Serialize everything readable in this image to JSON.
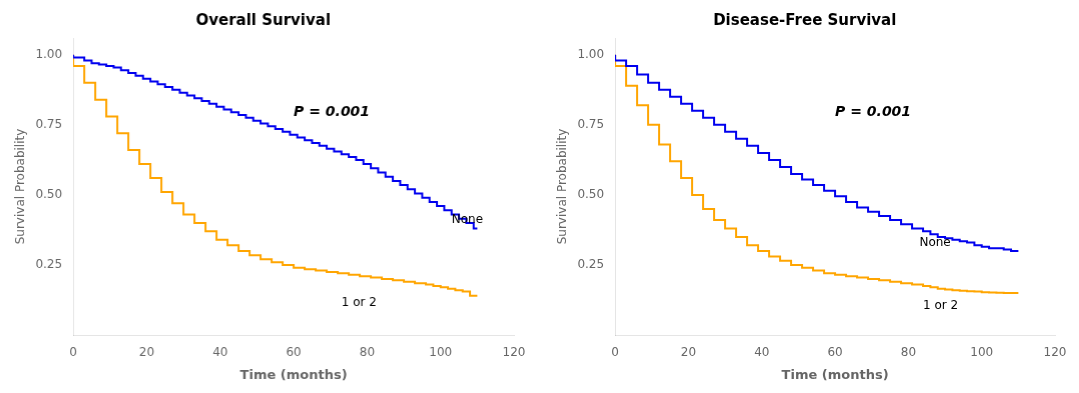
{
  "chart_data": [
    {
      "type": "line",
      "title": "Overall Survival",
      "x_label": "Time (months)",
      "y_label": "Survival Probability",
      "xlim": [
        0,
        120
      ],
      "xticks": [
        0,
        20,
        40,
        60,
        80,
        100,
        120
      ],
      "ylim": [
        0,
        1.06
      ],
      "yticks": [
        0.25,
        {
          "value": 0.5,
          "label": "0.50"
        },
        0.75,
        {
          "value": 1,
          "label": "1.00"
        }
      ],
      "grid": false,
      "series": [
        {
          "color": "#0000EE",
          "line_style": "step",
          "x": [
            0,
            3,
            5,
            7,
            9,
            11,
            13,
            15,
            17,
            19,
            21,
            23,
            25,
            27,
            29,
            31,
            33,
            35,
            37,
            39,
            41,
            43,
            45,
            47,
            49,
            51,
            53,
            55,
            57,
            59,
            61,
            63,
            65,
            67,
            69,
            71,
            73,
            75,
            77,
            79,
            81,
            83,
            85,
            87,
            89,
            91,
            93,
            95,
            97,
            99,
            101,
            103,
            105,
            107,
            109,
            110
          ],
          "values": [
            1.0,
            0.99,
            0.98,
            0.97,
            0.965,
            0.96,
            0.955,
            0.945,
            0.935,
            0.925,
            0.915,
            0.905,
            0.895,
            0.885,
            0.875,
            0.865,
            0.855,
            0.845,
            0.835,
            0.825,
            0.815,
            0.805,
            0.795,
            0.785,
            0.775,
            0.765,
            0.755,
            0.745,
            0.735,
            0.725,
            0.715,
            0.705,
            0.695,
            0.685,
            0.675,
            0.665,
            0.655,
            0.645,
            0.635,
            0.625,
            0.61,
            0.595,
            0.58,
            0.565,
            0.55,
            0.535,
            0.52,
            0.505,
            0.49,
            0.475,
            0.46,
            0.445,
            0.43,
            0.415,
            0.4,
            0.38
          ]
        },
        {
          "color": "#FFA500",
          "line_style": "step",
          "x": [
            0,
            3,
            6,
            9,
            12,
            15,
            18,
            21,
            24,
            27,
            30,
            33,
            36,
            39,
            42,
            45,
            48,
            51,
            54,
            57,
            60,
            63,
            66,
            69,
            72,
            75,
            78,
            81,
            84,
            87,
            90,
            93,
            96,
            98,
            100,
            102,
            104,
            106,
            108,
            110
          ],
          "values": [
            1.0,
            0.96,
            0.9,
            0.84,
            0.78,
            0.72,
            0.66,
            0.61,
            0.56,
            0.51,
            0.47,
            0.43,
            0.4,
            0.37,
            0.34,
            0.32,
            0.3,
            0.285,
            0.27,
            0.26,
            0.25,
            0.24,
            0.235,
            0.23,
            0.225,
            0.22,
            0.215,
            0.21,
            0.205,
            0.2,
            0.195,
            0.19,
            0.185,
            0.18,
            0.175,
            0.17,
            0.165,
            0.16,
            0.155,
            0.14
          ]
        }
      ],
      "annotations": [
        {
          "text": "P = 0.001"
        },
        {
          "text": "None",
          "x": 103,
          "y": 0.41
        },
        {
          "text": "1 or 2",
          "x": 73,
          "y": 0.115
        }
      ]
    },
    {
      "type": "line",
      "title": "Disease-Free Survival",
      "x_label": "Time (months)",
      "y_label": "Survival Probability",
      "xlim": [
        0,
        120
      ],
      "xticks": [
        0,
        20,
        40,
        60,
        80,
        100,
        120
      ],
      "ylim": [
        0,
        1.06
      ],
      "yticks": [
        0.25,
        {
          "value": 0.5,
          "label": "0.50"
        },
        0.75,
        {
          "value": 1,
          "label": "1.00"
        }
      ],
      "grid": false,
      "series": [
        {
          "color": "#0000EE",
          "line_style": "step",
          "x": [
            0,
            3,
            6,
            9,
            12,
            15,
            18,
            21,
            24,
            27,
            30,
            33,
            36,
            39,
            42,
            45,
            48,
            51,
            54,
            57,
            60,
            63,
            66,
            69,
            72,
            75,
            78,
            81,
            84,
            86,
            88,
            90,
            92,
            94,
            96,
            98,
            100,
            102,
            104,
            106,
            108,
            110
          ],
          "values": [
            1.0,
            0.98,
            0.96,
            0.93,
            0.9,
            0.875,
            0.85,
            0.825,
            0.8,
            0.775,
            0.75,
            0.725,
            0.7,
            0.675,
            0.65,
            0.625,
            0.6,
            0.575,
            0.555,
            0.535,
            0.515,
            0.495,
            0.475,
            0.455,
            0.44,
            0.425,
            0.41,
            0.395,
            0.38,
            0.37,
            0.36,
            0.35,
            0.345,
            0.34,
            0.335,
            0.33,
            0.32,
            0.315,
            0.31,
            0.31,
            0.305,
            0.3
          ]
        },
        {
          "color": "#FFA500",
          "line_style": "step",
          "x": [
            0,
            3,
            6,
            9,
            12,
            15,
            18,
            21,
            24,
            27,
            30,
            33,
            36,
            39,
            42,
            45,
            48,
            51,
            54,
            57,
            60,
            63,
            66,
            69,
            72,
            75,
            78,
            81,
            84,
            86,
            88,
            90,
            92,
            94,
            96,
            98,
            100,
            102,
            104,
            106,
            108,
            110
          ],
          "values": [
            1.0,
            0.96,
            0.89,
            0.82,
            0.75,
            0.68,
            0.62,
            0.56,
            0.5,
            0.45,
            0.41,
            0.38,
            0.35,
            0.32,
            0.3,
            0.28,
            0.265,
            0.25,
            0.24,
            0.23,
            0.22,
            0.215,
            0.21,
            0.205,
            0.2,
            0.195,
            0.19,
            0.185,
            0.18,
            0.175,
            0.17,
            0.165,
            0.162,
            0.16,
            0.158,
            0.156,
            0.155,
            0.153,
            0.152,
            0.151,
            0.15,
            0.15
          ]
        }
      ],
      "annotations": [
        {
          "text": "P = 0.001"
        },
        {
          "text": "None",
          "x": 83,
          "y": 0.33
        },
        {
          "text": "1 or 2",
          "x": 84,
          "y": 0.105
        }
      ]
    }
  ]
}
